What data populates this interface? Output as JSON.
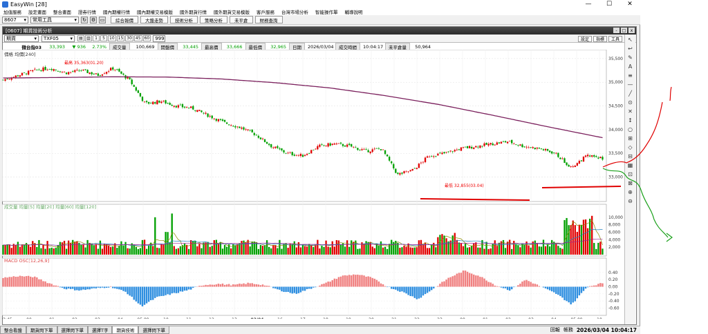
{
  "app": {
    "title": "EasyWin  [28]"
  },
  "window_controls": [
    "—",
    "☐",
    "✕"
  ],
  "menu": [
    "加值服務",
    "設定畫面",
    "整合畫面",
    "證券行情",
    "國內期權行情",
    "國內期權交易模版",
    "國外期貨行情",
    "國外期貨交易模版",
    "客戶服務",
    "台灣市場分析",
    "智能操作單",
    "輔導說明"
  ],
  "toolbar": {
    "symbol": "8607",
    "tool_select": "常用工具",
    "buttons": [
      "綜合報價",
      "大盤走勢",
      "技術分析",
      "策略分析",
      "未平倉",
      "財務查詢"
    ]
  },
  "chart_window": {
    "title": "[0607] 期貨技術分析",
    "symbol_type": "期貨",
    "contract": "TXF05",
    "period_buttons": [
      "1",
      "5",
      "10",
      "15",
      "30",
      "45",
      "60"
    ],
    "period_field": "999",
    "right_buttons": [
      "設定",
      "指標",
      "工具"
    ],
    "controls": [
      "-",
      "□",
      "x"
    ]
  },
  "quote": {
    "name": "微台指03",
    "price": "33,393",
    "change": "▼ 936",
    "pct": "2.73%",
    "labels": {
      "volume": "成交量",
      "open": "開盤價",
      "high": "最高價",
      "low": "最低價",
      "date": "日期",
      "time": "成交時間",
      "oi": "未平倉量"
    },
    "volume": "100,669",
    "open": "33,445",
    "high": "33,666",
    "low": "32,965",
    "date": "2026/03/04",
    "time": "10:04:17",
    "oi": "50,964"
  },
  "price_panel": {
    "label": "價格 均價[240]",
    "high_marker": "最高 35,363(01.20)",
    "low_marker": "最低 32,855(03.04)"
  },
  "volume_panel": {
    "label": "成交量 均量[5] 均量[20] 均量[60] 均量[120]"
  },
  "macd_panel": {
    "label": "MACD OSC[12,26,9]"
  },
  "right_tools": [
    "↖",
    "↩",
    "✎",
    "A",
    "≡",
    "—",
    "╱",
    "⊙",
    "✕",
    "↕",
    "○",
    "⊞",
    "◇",
    "⊟",
    "▦",
    "⊡",
    "⊠",
    "⊕",
    "⊖"
  ],
  "bottom_tabs": [
    "整合看盤",
    "期貨閃下單",
    "選擇閃下單",
    "選擇T字",
    "期貨技術",
    "選擇閃下單"
  ],
  "active_tab": 4,
  "status": {
    "label_a": "回報",
    "label_b": "帳務",
    "clock": "2026/03/04 10:04:17"
  },
  "colors": {
    "up": "#e00000",
    "down": "#00a000",
    "ma240": "#7a1f5c",
    "osc_pos": "#f08080",
    "osc_neg": "#2f8fe0",
    "annot_red": "#e00000",
    "annot_green": "#1aa01a"
  },
  "chart_data": [
    {
      "type": "candlestick",
      "ylim": [
        32600,
        35600
      ],
      "y_ticks": [
        33000,
        33500,
        34000,
        34500,
        35000,
        35500
      ],
      "y_tick_labels": [
        "33,000",
        "33,500",
        "34,000",
        "34,500",
        "35,000",
        "35,500"
      ],
      "x_tick_labels": [
        "22:45",
        "00",
        "01",
        "02",
        "03",
        "04",
        "05 09",
        "10",
        "11",
        "12",
        "13",
        "03/04",
        "16",
        "17",
        "18",
        "19",
        "20",
        "21",
        "22",
        "23",
        "00",
        "01",
        "02",
        "03",
        "04",
        "05 09",
        "10"
      ],
      "ma240_anchors": [
        35090,
        35100,
        35115,
        35110,
        35070,
        34990,
        34880,
        34720,
        34530,
        34300,
        34060,
        33830
      ],
      "close_anchors": [
        35050,
        35150,
        35250,
        35300,
        35200,
        35250,
        35150,
        35300,
        35050,
        34550,
        34600,
        34500,
        34450,
        34300,
        34150,
        34050,
        33900,
        33650,
        33500,
        33450,
        33650,
        33700,
        33650,
        33550,
        33600,
        33050,
        33150,
        33450,
        33500,
        33600,
        33650,
        33700,
        33750,
        33650,
        33600,
        33500,
        33200,
        33450,
        33400
      ]
    },
    {
      "type": "bar",
      "title": "volume",
      "ylim": [
        0,
        12000
      ],
      "y_ticks": [
        2000,
        4000,
        6000,
        8000,
        10000
      ],
      "y_tick_labels": [
        "2,000",
        "4,000",
        "6,000",
        "8,000",
        "10,000"
      ]
    },
    {
      "type": "bar",
      "title": "MACD OSC",
      "ylim": [
        -0.65,
        0.65
      ],
      "y_ticks": [
        0.4,
        0.2,
        0.0,
        -0.2,
        -0.4,
        -0.6
      ],
      "y_tick_labels": [
        "0.40",
        "0.20",
        "0.00",
        "-0.20",
        "-0.40",
        "-0.60"
      ]
    }
  ]
}
